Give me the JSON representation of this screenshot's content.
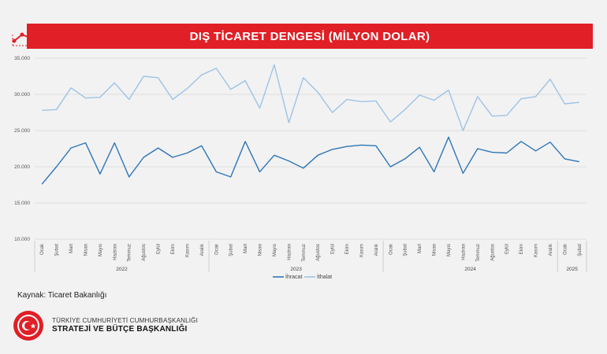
{
  "header": {
    "title": "DIŞ TİCARET DENGESİ (MİLYON DOLAR)"
  },
  "source": {
    "label": "Kaynak: Ticaret Bakanlığı"
  },
  "org": {
    "line1": "TÜRKİYE CUMHURİYETİ CUMHURBAŞKANLIĞI",
    "line2": "STRATEJİ VE BÜTÇE BAŞKANLIĞI"
  },
  "colors": {
    "title_bg": "#e01f26",
    "ihracat": "#2e75b6",
    "ithalat": "#9dc3e6",
    "grid": "#d6d6d6"
  },
  "chart_data": {
    "type": "line",
    "title": "DIŞ TİCARET DENGESİ (MİLYON DOLAR)",
    "xlabel": "",
    "ylabel": "",
    "ylim": [
      10000,
      35000
    ],
    "yticks": [
      "10.000",
      "15.000",
      "20.000",
      "25.000",
      "30.000",
      "35.000"
    ],
    "ytick_values": [
      10000,
      15000,
      20000,
      25000,
      30000,
      35000
    ],
    "grid": true,
    "legend": "bottom-center",
    "categories": [
      "Ocak",
      "Şubat",
      "Mart",
      "Nisan",
      "Mayıs",
      "Haziran",
      "Temmuz",
      "Ağustos",
      "Eylül",
      "Ekim",
      "Kasım",
      "Aralık",
      "Ocak",
      "Şubat",
      "Mart",
      "Nisan",
      "Mayıs",
      "Haziran",
      "Temmuz",
      "Ağustos",
      "Eylül",
      "Ekim",
      "Kasım",
      "Aralık",
      "Ocak",
      "Şubat",
      "Mart",
      "Nisan",
      "Mayıs",
      "Haziran",
      "Temmuz",
      "Ağustos",
      "Eylül",
      "Ekim",
      "Kasım",
      "Aralık",
      "Ocak",
      "Şubat"
    ],
    "year_groups": [
      {
        "label": "2022",
        "start": 0,
        "end": 11
      },
      {
        "label": "2023",
        "start": 12,
        "end": 23
      },
      {
        "label": "2024",
        "start": 24,
        "end": 35
      },
      {
        "label": "2025",
        "start": 36,
        "end": 37
      }
    ],
    "series": [
      {
        "name": "İhracat",
        "values": [
          17600,
          20000,
          22600,
          23300,
          19000,
          23300,
          18600,
          21300,
          22600,
          21300,
          21900,
          22900,
          19300,
          18600,
          23500,
          19300,
          21600,
          20800,
          19800,
          21600,
          22400,
          22800,
          23000,
          22900,
          20000,
          21100,
          22700,
          19300,
          24100,
          19100,
          22500,
          22000,
          21900,
          23500,
          22200,
          23400,
          21100,
          20700
        ]
      },
      {
        "name": "İthalat",
        "values": [
          27800,
          27900,
          30900,
          29500,
          29600,
          31600,
          29300,
          32500,
          32300,
          29300,
          30800,
          32700,
          33600,
          30700,
          31900,
          28100,
          34100,
          26100,
          32300,
          30300,
          27500,
          29300,
          29000,
          29100,
          26200,
          27900,
          29900,
          29200,
          30600,
          25000,
          29700,
          27000,
          27100,
          29400,
          29700,
          32100,
          28700,
          28900
        ]
      }
    ]
  }
}
